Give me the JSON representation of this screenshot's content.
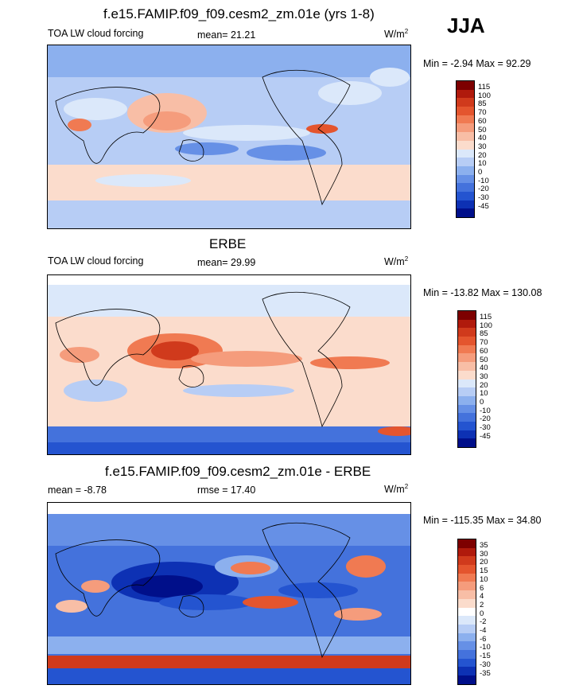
{
  "season": "JJA",
  "units_label": "W/m",
  "units_sup": "2",
  "chart_data": [
    {
      "type": "heatmap",
      "title": "f.e15.FAMIP.f09_f09.cesm2_zm.01e (yrs 1-8)",
      "variable": "TOA LW cloud forcing",
      "mean_text": "mean=  21.21",
      "minmax_text": "Min =  -2.94 Max =  92.29",
      "min": -2.94,
      "max": 92.29,
      "mean": 21.21,
      "colorbar_levels": [
        "115",
        "100",
        "85",
        "70",
        "60",
        "50",
        "40",
        "30",
        "20",
        "10",
        "0",
        "-10",
        "-20",
        "-30",
        "-45"
      ],
      "colorbar_colors": [
        "#7d0000",
        "#b01a0c",
        "#d03a1c",
        "#e4552e",
        "#f07a52",
        "#f59c7c",
        "#f8bea6",
        "#fbdccc",
        "#dbe8fa",
        "#b7cdf5",
        "#8cb0ee",
        "#6690e6",
        "#4472dc",
        "#2454d0",
        "#0d31b4",
        "#000f8a"
      ]
    },
    {
      "type": "heatmap",
      "title": "ERBE",
      "variable": "TOA LW cloud forcing",
      "mean_text": "mean=  29.99",
      "minmax_text": "Min = -13.82 Max = 130.08",
      "min": -13.82,
      "max": 130.08,
      "mean": 29.99,
      "colorbar_levels": [
        "115",
        "100",
        "85",
        "70",
        "60",
        "50",
        "40",
        "30",
        "20",
        "10",
        "0",
        "-10",
        "-20",
        "-30",
        "-45"
      ],
      "colorbar_colors": [
        "#7d0000",
        "#b01a0c",
        "#d03a1c",
        "#e4552e",
        "#f07a52",
        "#f59c7c",
        "#f8bea6",
        "#fbdccc",
        "#dbe8fa",
        "#b7cdf5",
        "#8cb0ee",
        "#6690e6",
        "#4472dc",
        "#2454d0",
        "#0d31b4",
        "#000f8a"
      ]
    },
    {
      "type": "heatmap",
      "title": "f.e15.FAMIP.f09_f09.cesm2_zm.01e - ERBE",
      "mean_text": "mean =  -8.78",
      "rmse_text": "rmse =  17.40",
      "minmax_text": "Min = -115.35 Max =  34.80",
      "min": -115.35,
      "max": 34.8,
      "mean": -8.78,
      "rmse": 17.4,
      "colorbar_levels": [
        "35",
        "30",
        "20",
        "15",
        "10",
        "6",
        "4",
        "2",
        "0",
        "-2",
        "-4",
        "-6",
        "-10",
        "-15",
        "-30",
        "-35"
      ],
      "colorbar_colors": [
        "#7d0000",
        "#b01a0c",
        "#d03a1c",
        "#e4552e",
        "#f07a52",
        "#f59c7c",
        "#f8bea6",
        "#fbdccc",
        "#ffffff",
        "#dbe8fa",
        "#b7cdf5",
        "#8cb0ee",
        "#6690e6",
        "#4472dc",
        "#2454d0",
        "#0d31b4",
        "#000f8a"
      ]
    }
  ]
}
